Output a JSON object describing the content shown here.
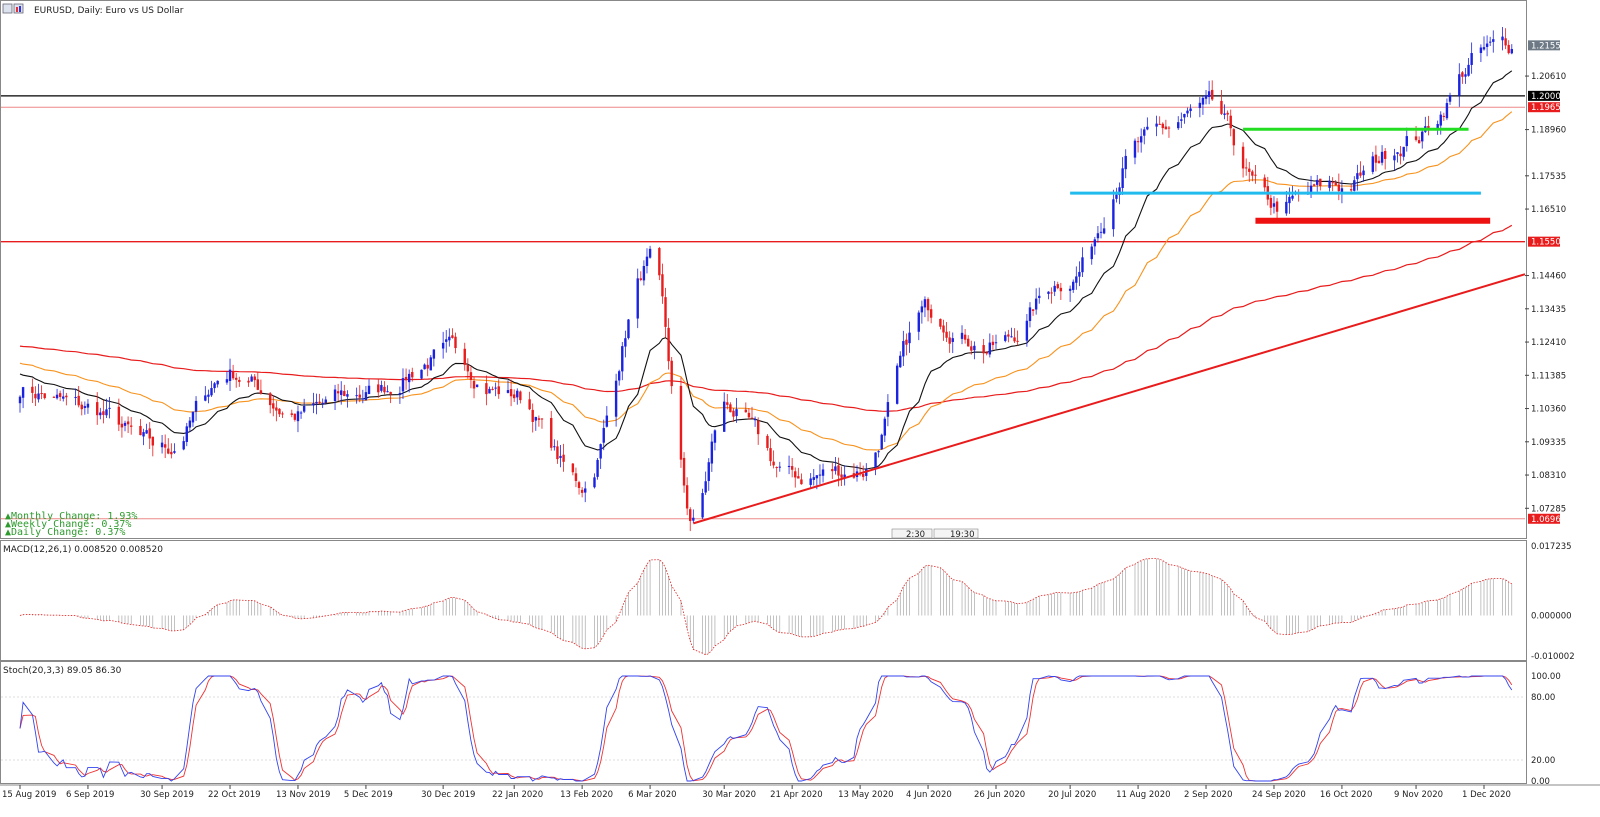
{
  "window": {
    "title": "EURUSD, Daily:  Euro vs US Dollar"
  },
  "info_panel": {
    "monthly": "▲Monthly Change: 1.93%",
    "weekly": "▲Weekly Change: 0.37%",
    "daily": "▲Daily Change: 0.37%"
  },
  "session_markers": [
    "2:30",
    "19:30"
  ],
  "colors": {
    "bull": "#1a23e0",
    "bear": "#e81c1c",
    "ma_fast": "#111111",
    "ma_mid": "#f7931e",
    "ma_slow": "#e81c1c",
    "green_level": "#22dd22",
    "cyan_level": "#22bbee",
    "red_zone": "#ee1111",
    "macd": "#999999",
    "macd_signal": "#e81c1c",
    "stoch_main": "#3344ee",
    "stoch_signal": "#ee3333"
  },
  "chart_data": [
    {
      "type": "candlestick",
      "title": "EURUSD, Daily:  Euro vs US Dollar",
      "symbol": "EURUSD",
      "timeframe": "Daily",
      "ylim": [
        1.064,
        1.224
      ],
      "y_ticks": [
        "1.20610",
        "1.18960",
        "1.17535",
        "1.16510",
        "1.14460",
        "1.13435",
        "1.12410",
        "1.11385",
        "1.10360",
        "1.09335",
        "1.08310",
        "1.07285"
      ],
      "x_ticks": [
        "15 Aug 2019",
        "6 Sep 2019",
        "30 Sep 2019",
        "22 Oct 2019",
        "13 Nov 2019",
        "5 Dec 2019",
        "30 Dec 2019",
        "22 Jan 2020",
        "13 Feb 2020",
        "6 Mar 2020",
        "30 Mar 2020",
        "21 Apr 2020",
        "13 May 2020",
        "4 Jun 2020",
        "26 Jun 2020",
        "20 Jul 2020",
        "11 Aug 2020",
        "2 Sep 2020",
        "24 Sep 2020",
        "16 Oct 2020",
        "9 Nov 2020",
        "1 Dec 2020"
      ],
      "close_path": [
        [
          "15 Aug 2019",
          1.11
        ],
        [
          "6 Sep 2019",
          1.103
        ],
        [
          "30 Sep 2019",
          1.09
        ],
        [
          "22 Oct 2019",
          1.115
        ],
        [
          "13 Nov 2019",
          1.102
        ],
        [
          "5 Dec 2019",
          1.108
        ],
        [
          "30 Dec 2019",
          1.12
        ],
        [
          "22 Jan 2020",
          1.108
        ],
        [
          "13 Feb 2020",
          1.08
        ],
        [
          "6 Mar 2020",
          1.148
        ],
        [
          "20 Mar 2020",
          1.068
        ],
        [
          "30 Mar 2020",
          1.104
        ],
        [
          "21 Apr 2020",
          1.082
        ],
        [
          "13 May 2020",
          1.085
        ],
        [
          "4 Jun 2020",
          1.133
        ],
        [
          "26 Jun 2020",
          1.123
        ],
        [
          "20 Jul 2020",
          1.145
        ],
        [
          "11 Aug 2020",
          1.185
        ],
        [
          "2 Sep 2020",
          1.195
        ],
        [
          "24 Sep 2020",
          1.165
        ],
        [
          "16 Oct 2020",
          1.172
        ],
        [
          "9 Nov 2020",
          1.188
        ],
        [
          "1 Dec 2020",
          1.213
        ],
        [
          "10 Dec 2020",
          1.2155
        ]
      ],
      "price_labels": [
        {
          "text": "1.21557",
          "value": 1.21557,
          "bg": "#6d7a86"
        },
        {
          "text": "1.20000",
          "value": 1.2,
          "bg": "#000000"
        },
        {
          "text": "1.19650",
          "value": 1.1965,
          "bg": "#e81c1c"
        },
        {
          "text": "1.15505",
          "value": 1.15505,
          "bg": "#e81c1c"
        },
        {
          "text": "1.06962",
          "value": 1.06962,
          "bg": "#e81c1c"
        }
      ],
      "levels": [
        {
          "value": 1.2,
          "color": "#000000"
        },
        {
          "value": 1.1965,
          "color": "#ee8888"
        },
        {
          "value": 1.15505,
          "color": "#e81c1c"
        },
        {
          "value": 1.06962,
          "color": "#ee8888"
        }
      ],
      "segments": [
        {
          "name": "green",
          "from": "14 Sep 2020",
          "to": "26 Nov 2020",
          "value": 1.1897
        },
        {
          "name": "cyan",
          "from": "20 Jul 2020",
          "to": "30 Nov 2020",
          "value": 1.17
        },
        {
          "name": "red-zone",
          "from": "18 Sep 2020",
          "to": "3 Dec 2020",
          "value": 1.1615
        }
      ],
      "trendline": {
        "from": [
          "20 Mar 2020",
          1.0682
        ],
        "to": [
          "18 Dec 2020",
          1.145
        ]
      }
    },
    {
      "type": "histogram",
      "title": "MACD(12,26,1) 0.008520 0.008520",
      "y_ticks": [
        "0.017235",
        "0.000000",
        "-0.010002"
      ],
      "ylim": [
        -0.0108,
        0.018
      ]
    },
    {
      "type": "line",
      "title": "Stoch(20,3,3) 89.05 86.30",
      "y_ticks": [
        "100.00",
        "80.00",
        "20.00",
        "0.00"
      ],
      "ylim": [
        0,
        100
      ]
    }
  ]
}
